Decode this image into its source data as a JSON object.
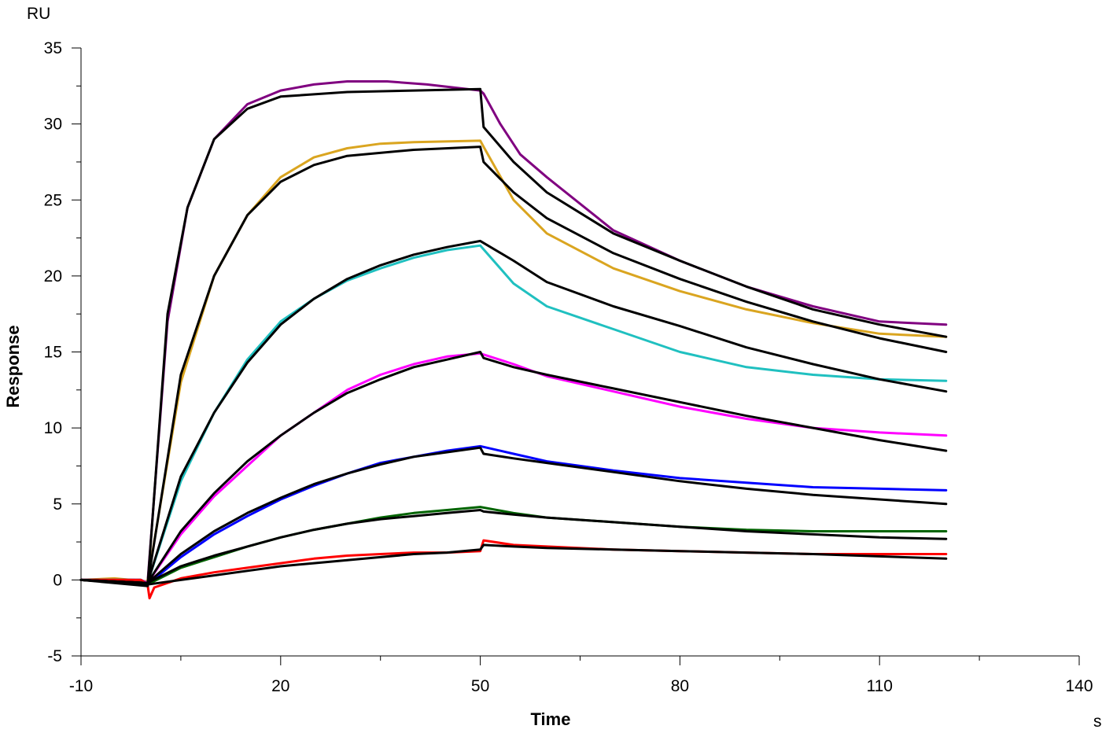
{
  "chart_data": {
    "type": "line",
    "title": "",
    "xlabel": "Time",
    "ylabel": "Response",
    "x_unit": "s",
    "y_unit": "RU",
    "xlim": [
      -10,
      140
    ],
    "ylim": [
      -5,
      35
    ],
    "xticks": [
      -10,
      20,
      50,
      80,
      110,
      140
    ],
    "yticks": [
      -5,
      0,
      5,
      10,
      15,
      20,
      25,
      30,
      35
    ],
    "grid": false,
    "legend": "none",
    "series": [
      {
        "color": "#800080",
        "points": [
          [
            -10,
            0
          ],
          [
            -2,
            0
          ],
          [
            0,
            -0.2
          ],
          [
            3,
            17
          ],
          [
            6,
            24.5
          ],
          [
            10,
            29
          ],
          [
            15,
            31.3
          ],
          [
            20,
            32.2
          ],
          [
            25,
            32.6
          ],
          [
            30,
            32.8
          ],
          [
            36,
            32.8
          ],
          [
            42,
            32.6
          ],
          [
            50,
            32.2
          ],
          [
            50.5,
            32
          ],
          [
            53,
            30
          ],
          [
            56,
            28
          ],
          [
            60,
            26.5
          ],
          [
            70,
            23
          ],
          [
            80,
            21
          ],
          [
            90,
            19.3
          ],
          [
            100,
            18
          ],
          [
            110,
            17
          ],
          [
            120,
            16.8
          ]
        ]
      },
      {
        "color": "#DAA520",
        "points": [
          [
            -10,
            0
          ],
          [
            -5,
            0.1
          ],
          [
            0,
            -0.1
          ],
          [
            5,
            13
          ],
          [
            10,
            20
          ],
          [
            15,
            24
          ],
          [
            20,
            26.5
          ],
          [
            25,
            27.8
          ],
          [
            30,
            28.4
          ],
          [
            35,
            28.7
          ],
          [
            40,
            28.8
          ],
          [
            50,
            28.9
          ],
          [
            50.5,
            28.5
          ],
          [
            55,
            25
          ],
          [
            60,
            22.8
          ],
          [
            70,
            20.5
          ],
          [
            80,
            19
          ],
          [
            90,
            17.8
          ],
          [
            100,
            16.9
          ],
          [
            110,
            16.2
          ],
          [
            120,
            16
          ]
        ]
      },
      {
        "color": "#20C0C0",
        "points": [
          [
            -10,
            0
          ],
          [
            -1,
            0
          ],
          [
            0,
            -0.2
          ],
          [
            5,
            6.5
          ],
          [
            10,
            11
          ],
          [
            15,
            14.5
          ],
          [
            20,
            17
          ],
          [
            25,
            18.5
          ],
          [
            30,
            19.7
          ],
          [
            35,
            20.5
          ],
          [
            40,
            21.2
          ],
          [
            45,
            21.7
          ],
          [
            50,
            22
          ],
          [
            55,
            19.5
          ],
          [
            60,
            18
          ],
          [
            70,
            16.5
          ],
          [
            80,
            15
          ],
          [
            90,
            14
          ],
          [
            100,
            13.5
          ],
          [
            110,
            13.2
          ],
          [
            120,
            13.1
          ]
        ]
      },
      {
        "color": "#FF00FF",
        "points": [
          [
            -10,
            0
          ],
          [
            -1,
            0
          ],
          [
            0,
            -0.2
          ],
          [
            5,
            3
          ],
          [
            10,
            5.5
          ],
          [
            15,
            7.5
          ],
          [
            20,
            9.5
          ],
          [
            25,
            11
          ],
          [
            30,
            12.5
          ],
          [
            35,
            13.5
          ],
          [
            40,
            14.2
          ],
          [
            45,
            14.7
          ],
          [
            50,
            14.9
          ],
          [
            55,
            14.2
          ],
          [
            60,
            13.4
          ],
          [
            70,
            12.4
          ],
          [
            80,
            11.4
          ],
          [
            90,
            10.6
          ],
          [
            100,
            10
          ],
          [
            110,
            9.7
          ],
          [
            120,
            9.5
          ]
        ]
      },
      {
        "color": "#0000FF",
        "points": [
          [
            -10,
            0
          ],
          [
            -1,
            0
          ],
          [
            0,
            -0.3
          ],
          [
            5,
            1.5
          ],
          [
            10,
            3
          ],
          [
            15,
            4.2
          ],
          [
            20,
            5.3
          ],
          [
            25,
            6.2
          ],
          [
            30,
            7
          ],
          [
            35,
            7.7
          ],
          [
            40,
            8.1
          ],
          [
            45,
            8.5
          ],
          [
            50,
            8.8
          ],
          [
            55,
            8.3
          ],
          [
            60,
            7.8
          ],
          [
            70,
            7.2
          ],
          [
            80,
            6.7
          ],
          [
            90,
            6.4
          ],
          [
            100,
            6.1
          ],
          [
            110,
            6
          ],
          [
            120,
            5.9
          ]
        ]
      },
      {
        "color": "#006400",
        "points": [
          [
            -10,
            0
          ],
          [
            -1,
            0
          ],
          [
            0,
            -0.3
          ],
          [
            5,
            0.8
          ],
          [
            10,
            1.5
          ],
          [
            15,
            2.2
          ],
          [
            20,
            2.8
          ],
          [
            25,
            3.3
          ],
          [
            30,
            3.7
          ],
          [
            35,
            4.1
          ],
          [
            40,
            4.4
          ],
          [
            45,
            4.6
          ],
          [
            50,
            4.8
          ],
          [
            55,
            4.4
          ],
          [
            60,
            4.1
          ],
          [
            70,
            3.8
          ],
          [
            80,
            3.5
          ],
          [
            90,
            3.3
          ],
          [
            100,
            3.2
          ],
          [
            110,
            3.2
          ],
          [
            120,
            3.2
          ]
        ]
      },
      {
        "color": "#FF0000",
        "points": [
          [
            -10,
            0
          ],
          [
            -1,
            0
          ],
          [
            0,
            -0.3
          ],
          [
            0.3,
            -1.2
          ],
          [
            1,
            -0.5
          ],
          [
            5,
            0.1
          ],
          [
            10,
            0.5
          ],
          [
            15,
            0.8
          ],
          [
            20,
            1.1
          ],
          [
            25,
            1.4
          ],
          [
            30,
            1.6
          ],
          [
            35,
            1.7
          ],
          [
            40,
            1.8
          ],
          [
            45,
            1.8
          ],
          [
            50,
            1.9
          ],
          [
            50.5,
            2.6
          ],
          [
            55,
            2.3
          ],
          [
            60,
            2.2
          ],
          [
            70,
            2.0
          ],
          [
            80,
            1.9
          ],
          [
            90,
            1.8
          ],
          [
            100,
            1.7
          ],
          [
            110,
            1.7
          ],
          [
            120,
            1.7
          ]
        ]
      },
      {
        "color": "#000000",
        "points": [
          [
            -10,
            0
          ],
          [
            0,
            -0.4
          ],
          [
            3,
            17.5
          ],
          [
            6,
            24.5
          ],
          [
            10,
            29
          ],
          [
            15,
            31
          ],
          [
            20,
            31.8
          ],
          [
            30,
            32.1
          ],
          [
            40,
            32.2
          ],
          [
            50,
            32.3
          ],
          [
            50.5,
            29.8
          ],
          [
            55,
            27.5
          ],
          [
            60,
            25.5
          ],
          [
            70,
            22.8
          ],
          [
            80,
            21
          ],
          [
            90,
            19.3
          ],
          [
            100,
            17.8
          ],
          [
            110,
            16.8
          ],
          [
            120,
            16
          ]
        ]
      },
      {
        "color": "#000000",
        "points": [
          [
            -10,
            0
          ],
          [
            0,
            -0.3
          ],
          [
            5,
            13.5
          ],
          [
            10,
            20
          ],
          [
            15,
            24
          ],
          [
            20,
            26.2
          ],
          [
            25,
            27.3
          ],
          [
            30,
            27.9
          ],
          [
            40,
            28.3
          ],
          [
            50,
            28.5
          ],
          [
            50.5,
            27.5
          ],
          [
            55,
            25.5
          ],
          [
            60,
            23.8
          ],
          [
            70,
            21.5
          ],
          [
            80,
            19.8
          ],
          [
            90,
            18.3
          ],
          [
            100,
            17
          ],
          [
            110,
            15.9
          ],
          [
            120,
            15
          ]
        ]
      },
      {
        "color": "#000000",
        "points": [
          [
            -10,
            0
          ],
          [
            0,
            -0.2
          ],
          [
            5,
            6.8
          ],
          [
            10,
            11
          ],
          [
            15,
            14.3
          ],
          [
            20,
            16.8
          ],
          [
            25,
            18.5
          ],
          [
            30,
            19.8
          ],
          [
            35,
            20.7
          ],
          [
            40,
            21.4
          ],
          [
            45,
            21.9
          ],
          [
            50,
            22.3
          ],
          [
            55,
            21
          ],
          [
            60,
            19.6
          ],
          [
            70,
            18
          ],
          [
            80,
            16.7
          ],
          [
            90,
            15.3
          ],
          [
            100,
            14.2
          ],
          [
            110,
            13.2
          ],
          [
            120,
            12.4
          ]
        ]
      },
      {
        "color": "#000000",
        "points": [
          [
            -10,
            0
          ],
          [
            0,
            -0.2
          ],
          [
            5,
            3.2
          ],
          [
            10,
            5.7
          ],
          [
            15,
            7.8
          ],
          [
            20,
            9.5
          ],
          [
            25,
            11
          ],
          [
            30,
            12.3
          ],
          [
            35,
            13.2
          ],
          [
            40,
            14
          ],
          [
            45,
            14.5
          ],
          [
            50,
            15
          ],
          [
            50.5,
            14.6
          ],
          [
            55,
            14
          ],
          [
            60,
            13.5
          ],
          [
            70,
            12.6
          ],
          [
            80,
            11.7
          ],
          [
            90,
            10.8
          ],
          [
            100,
            10
          ],
          [
            110,
            9.2
          ],
          [
            120,
            8.5
          ]
        ]
      },
      {
        "color": "#000000",
        "points": [
          [
            -10,
            0
          ],
          [
            0,
            -0.2
          ],
          [
            5,
            1.7
          ],
          [
            10,
            3.2
          ],
          [
            15,
            4.4
          ],
          [
            20,
            5.4
          ],
          [
            25,
            6.3
          ],
          [
            30,
            7
          ],
          [
            35,
            7.6
          ],
          [
            40,
            8.1
          ],
          [
            45,
            8.4
          ],
          [
            50,
            8.7
          ],
          [
            50.5,
            8.3
          ],
          [
            55,
            8
          ],
          [
            60,
            7.7
          ],
          [
            70,
            7.1
          ],
          [
            80,
            6.5
          ],
          [
            90,
            6
          ],
          [
            100,
            5.6
          ],
          [
            110,
            5.3
          ],
          [
            120,
            5.0
          ]
        ]
      },
      {
        "color": "#000000",
        "points": [
          [
            -10,
            0
          ],
          [
            0,
            -0.2
          ],
          [
            5,
            0.9
          ],
          [
            10,
            1.6
          ],
          [
            15,
            2.2
          ],
          [
            20,
            2.8
          ],
          [
            25,
            3.3
          ],
          [
            30,
            3.7
          ],
          [
            35,
            4
          ],
          [
            40,
            4.2
          ],
          [
            45,
            4.4
          ],
          [
            50,
            4.6
          ],
          [
            50.5,
            4.5
          ],
          [
            55,
            4.3
          ],
          [
            60,
            4.1
          ],
          [
            70,
            3.8
          ],
          [
            80,
            3.5
          ],
          [
            90,
            3.2
          ],
          [
            100,
            3
          ],
          [
            110,
            2.8
          ],
          [
            120,
            2.7
          ]
        ]
      },
      {
        "color": "#000000",
        "points": [
          [
            -10,
            0
          ],
          [
            0,
            -0.3
          ],
          [
            5,
            0
          ],
          [
            10,
            0.3
          ],
          [
            15,
            0.6
          ],
          [
            20,
            0.9
          ],
          [
            25,
            1.1
          ],
          [
            30,
            1.3
          ],
          [
            35,
            1.5
          ],
          [
            40,
            1.7
          ],
          [
            45,
            1.8
          ],
          [
            50,
            2.0
          ],
          [
            50.5,
            2.3
          ],
          [
            55,
            2.2
          ],
          [
            60,
            2.1
          ],
          [
            70,
            2.0
          ],
          [
            80,
            1.9
          ],
          [
            90,
            1.8
          ],
          [
            100,
            1.7
          ],
          [
            110,
            1.55
          ],
          [
            120,
            1.4
          ]
        ]
      }
    ]
  }
}
